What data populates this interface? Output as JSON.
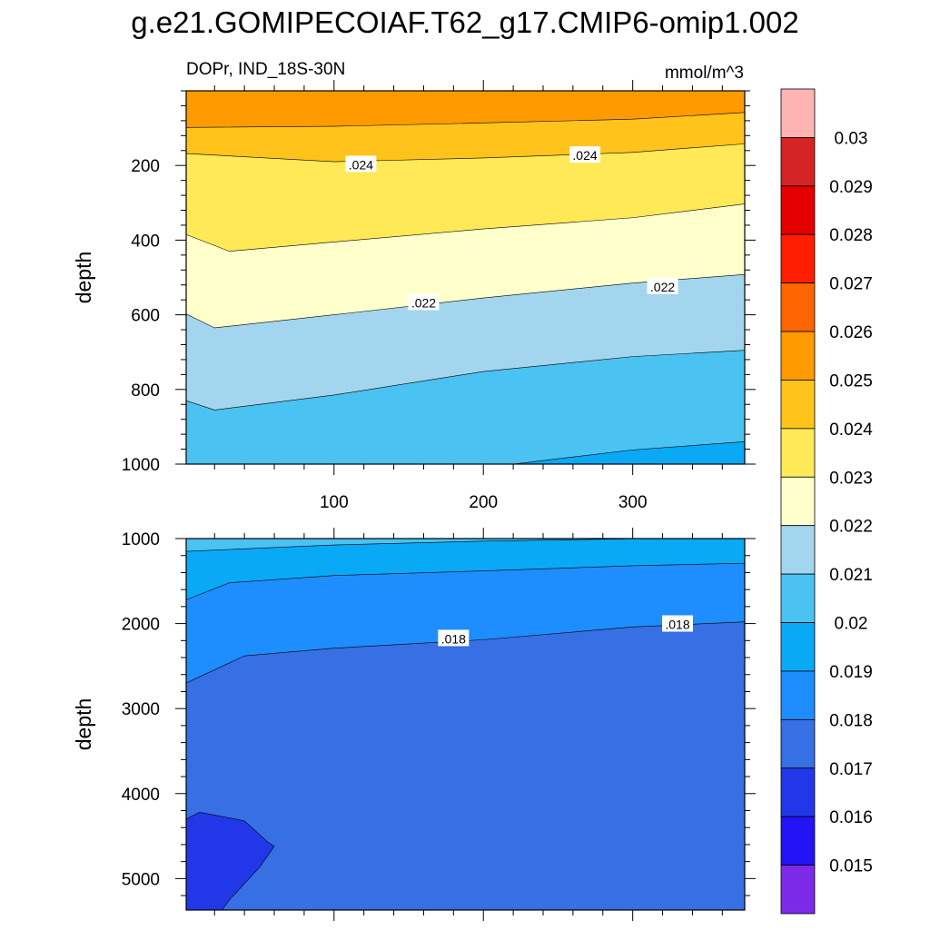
{
  "title": "g.e21.GOMIPECOIAF.T62_g17.CMIP6-omip1.002",
  "subtitle_left": "DOPr, IND_18S-30N",
  "subtitle_right": "mmol/m^3",
  "chart_data": {
    "type": "filled-contour",
    "xlabel": "",
    "ylabel": "depth",
    "xlim": [
      1,
      375
    ],
    "x_ticks": [
      100,
      200,
      300
    ],
    "units": "mmol/m^3",
    "panels": [
      {
        "name": "upper",
        "ylim": [
          0,
          1000
        ],
        "y_ticks": [
          200,
          400,
          600,
          800,
          1000
        ],
        "contour_labels": [
          {
            "text": ".024",
            "x": 118,
            "depth": 198
          },
          {
            "text": ".024",
            "x": 268,
            "depth": 173
          },
          {
            "text": ".022",
            "x": 160,
            "depth": 568
          },
          {
            "text": ".022",
            "x": 320,
            "depth": 525
          }
        ],
        "isolines": [
          {
            "level": 0.025,
            "points": [
              [
                1,
                98
              ],
              [
                100,
                95
              ],
              [
                200,
                86
              ],
              [
                300,
                76
              ],
              [
                375,
                58
              ]
            ]
          },
          {
            "level": 0.024,
            "points": [
              [
                1,
                168
              ],
              [
                100,
                190
              ],
              [
                200,
                180
              ],
              [
                300,
                165
              ],
              [
                375,
                142
              ]
            ]
          },
          {
            "level": 0.023,
            "points": [
              [
                1,
                385
              ],
              [
                30,
                430
              ],
              [
                100,
                405
              ],
              [
                200,
                370
              ],
              [
                300,
                340
              ],
              [
                375,
                303
              ]
            ]
          },
          {
            "level": 0.022,
            "points": [
              [
                1,
                598
              ],
              [
                20,
                635
              ],
              [
                100,
                600
              ],
              [
                200,
                555
              ],
              [
                300,
                515
              ],
              [
                375,
                492
              ]
            ]
          },
          {
            "level": 0.021,
            "points": [
              [
                1,
                830
              ],
              [
                20,
                855
              ],
              [
                100,
                815
              ],
              [
                200,
                752
              ],
              [
                300,
                712
              ],
              [
                375,
                695
              ]
            ]
          },
          {
            "level": 0.02,
            "points": [
              [
                220,
                1000
              ],
              [
                300,
                962
              ],
              [
                375,
                940
              ]
            ]
          }
        ]
      },
      {
        "name": "lower",
        "ylim": [
          1000,
          5370
        ],
        "y_ticks": [
          1000,
          2000,
          3000,
          4000,
          5000
        ],
        "contour_labels": [
          {
            "text": ".018",
            "x": 180,
            "depth": 2180
          },
          {
            "text": ".018",
            "x": 330,
            "depth": 2010
          }
        ],
        "isolines": [
          {
            "level": 0.02,
            "points": [
              [
                1,
                1150
              ],
              [
                100,
                1075
              ],
              [
                200,
                1030
              ],
              [
                300,
                1002
              ],
              [
                375,
                1000
              ]
            ]
          },
          {
            "level": 0.019,
            "points": [
              [
                1,
                1720
              ],
              [
                30,
                1520
              ],
              [
                100,
                1435
              ],
              [
                200,
                1380
              ],
              [
                300,
                1320
              ],
              [
                375,
                1290
              ]
            ]
          },
          {
            "level": 0.018,
            "points": [
              [
                1,
                2700
              ],
              [
                40,
                2380
              ],
              [
                100,
                2290
              ],
              [
                200,
                2190
              ],
              [
                300,
                2040
              ],
              [
                375,
                1980
              ]
            ]
          },
          {
            "level": 0.017,
            "points": [
              [
                1,
                4300
              ],
              [
                10,
                4220
              ],
              [
                40,
                4320
              ],
              [
                55,
                4560
              ],
              [
                60,
                4620
              ],
              [
                50,
                4870
              ],
              [
                30,
                5250
              ],
              [
                25,
                5370
              ],
              [
                1,
                5370
              ]
            ]
          }
        ]
      }
    ],
    "colorbar": {
      "levels": [
        0.015,
        0.016,
        0.017,
        0.018,
        0.019,
        0.02,
        0.021,
        0.022,
        0.023,
        0.024,
        0.025,
        0.026,
        0.027,
        0.028,
        0.029,
        0.03
      ],
      "labels": [
        "0.015",
        "0.016",
        "0.017",
        "0.018",
        "0.019",
        "0.02",
        "0.021",
        "0.022",
        "0.023",
        "0.024",
        "0.025",
        "0.026",
        "0.027",
        "0.028",
        "0.029",
        "0.03"
      ],
      "colors": [
        "#7d2ae8",
        "#2313f5",
        "#2238e8",
        "#376fe4",
        "#1e8eff",
        "#0aa9f6",
        "#4ac2f2",
        "#a3d6ee",
        "#ffffcc",
        "#ffe957",
        "#ffc31c",
        "#ff9b00",
        "#ff6600",
        "#ff1f00",
        "#e50000",
        "#d42424",
        "#ffb4b4"
      ]
    }
  }
}
